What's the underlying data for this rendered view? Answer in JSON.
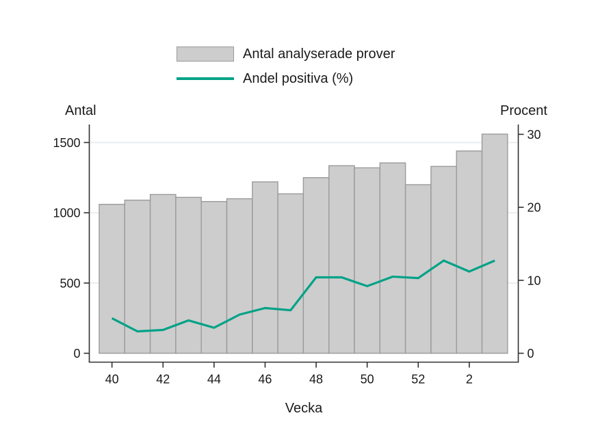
{
  "chart_data": {
    "type": "combo",
    "title": "",
    "categories": [
      "40",
      "41",
      "42",
      "43",
      "44",
      "45",
      "46",
      "47",
      "48",
      "49",
      "50",
      "51",
      "52",
      "1",
      "2",
      "3"
    ],
    "series": [
      {
        "name": "Antal analyserade prover",
        "type": "bar",
        "axis": "left",
        "values": [
          1060,
          1090,
          1130,
          1110,
          1080,
          1100,
          1220,
          1135,
          1250,
          1335,
          1320,
          1355,
          1200,
          1330,
          1440,
          1560
        ]
      },
      {
        "name": "Andel positiva (%)",
        "type": "line",
        "axis": "right",
        "values": [
          4.8,
          3.0,
          3.2,
          4.5,
          3.5,
          5.3,
          6.2,
          5.9,
          10.4,
          10.4,
          9.2,
          10.5,
          10.3,
          12.7,
          11.2,
          12.7
        ]
      }
    ],
    "left_axis": {
      "title": "Antal",
      "ticks": [
        0,
        500,
        1000,
        1500
      ],
      "lim": [
        0,
        1620
      ]
    },
    "right_axis": {
      "title": "Procent",
      "ticks": [
        0,
        10,
        20,
        30
      ],
      "lim": [
        0,
        31.2
      ]
    },
    "x_axis": {
      "title": "Vecka",
      "tick_labels": [
        "40",
        "42",
        "44",
        "46",
        "48",
        "50",
        "52",
        "2"
      ],
      "tick_indices": [
        0,
        2,
        4,
        6,
        8,
        10,
        12,
        14
      ]
    },
    "legend": [
      {
        "swatch": "bar",
        "label": "Antal analyserade prover"
      },
      {
        "swatch": "line",
        "label": "Andel positiva (%)"
      }
    ],
    "grid": {
      "horizontal_at_left_ticks": [
        500,
        1000,
        1500
      ],
      "color": "#e9eef4"
    },
    "colors": {
      "bar_fill": "#cdcdcd",
      "bar_border": "#9a9a9a",
      "line": "#00a287",
      "spine": "#303030",
      "text": "#1a1a1a",
      "background": "#ffffff"
    }
  }
}
